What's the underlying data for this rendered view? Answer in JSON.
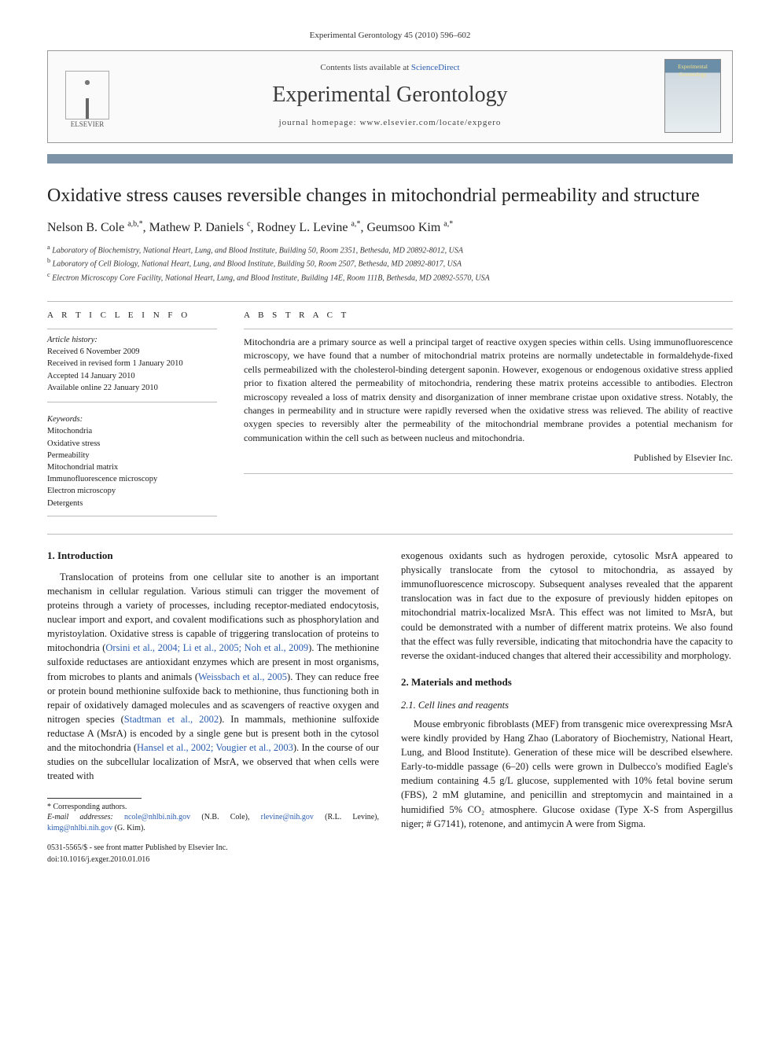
{
  "issue_line": "Experimental Gerontology 45 (2010) 596–602",
  "masthead": {
    "contents_prefix": "Contents lists available at ",
    "contents_link": "ScienceDirect",
    "journal_title": "Experimental Gerontology",
    "homepage_line": "journal homepage: www.elsevier.com/locate/expgero",
    "publisher_name": "ELSEVIER",
    "cover_text": "Experimental\nGerontology"
  },
  "colors": {
    "bar": "#7d93a7",
    "link": "#2a5db0",
    "rule": "#bbbbbb",
    "text": "#1a1a1a",
    "background": "#ffffff"
  },
  "article": {
    "title": "Oxidative stress causes reversible changes in mitochondrial permeability and structure",
    "authors_html": "Nelson B. Cole <sup>a,b,*</sup>, Mathew P. Daniels <sup>c</sup>, Rodney L. Levine <sup>a,*</sup>, Geumsoo Kim <sup>a,*</sup>",
    "affiliations": [
      {
        "key": "a",
        "text": "Laboratory of Biochemistry, National Heart, Lung, and Blood Institute, Building 50, Room 2351, Bethesda, MD 20892-8012, USA"
      },
      {
        "key": "b",
        "text": "Laboratory of Cell Biology, National Heart, Lung, and Blood Institute, Building 50, Room 2507, Bethesda, MD 20892-8017, USA"
      },
      {
        "key": "c",
        "text": "Electron Microscopy Core Facility, National Heart, Lung, and Blood Institute, Building 14E, Room 111B, Bethesda, MD 20892-5570, USA"
      }
    ]
  },
  "info": {
    "heading": "A R T I C L E   I N F O",
    "history_label": "Article history:",
    "history": [
      "Received 6 November 2009",
      "Received in revised form 1 January 2010",
      "Accepted 14 January 2010",
      "Available online 22 January 2010"
    ],
    "keywords_label": "Keywords:",
    "keywords": [
      "Mitochondria",
      "Oxidative stress",
      "Permeability",
      "Mitochondrial matrix",
      "Immunofluorescence microscopy",
      "Electron microscopy",
      "Detergents"
    ]
  },
  "abstract": {
    "heading": "A B S T R A C T",
    "text": "Mitochondria are a primary source as well a principal target of reactive oxygen species within cells. Using immunofluorescence microscopy, we have found that a number of mitochondrial matrix proteins are normally undetectable in formaldehyde-fixed cells permeabilized with the cholesterol-binding detergent saponin. However, exogenous or endogenous oxidative stress applied prior to fixation altered the permeability of mitochondria, rendering these matrix proteins accessible to antibodies. Electron microscopy revealed a loss of matrix density and disorganization of inner membrane cristae upon oxidative stress. Notably, the changes in permeability and in structure were rapidly reversed when the oxidative stress was relieved. The ability of reactive oxygen species to reversibly alter the permeability of the mitochondrial membrane provides a potential mechanism for communication within the cell such as between nucleus and mitochondria.",
    "published_by": "Published by Elsevier Inc."
  },
  "body": {
    "intro_head": "1. Introduction",
    "intro_p1_a": "Translocation of proteins from one cellular site to another is an important mechanism in cellular regulation. Various stimuli can trigger the movement of proteins through a variety of processes, including receptor-mediated endocytosis, nuclear import and export, and covalent modifications such as phosphorylation and myristoylation. Oxidative stress is capable of triggering translocation of proteins to mitochondria (",
    "intro_cite1": "Orsini et al., 2004; Li et al., 2005; Noh et al., 2009",
    "intro_p1_b": "). The methionine sulfoxide reductases are antioxidant enzymes which are present in most organisms, from microbes to plants and animals (",
    "intro_cite2": "Weissbach et al., 2005",
    "intro_p1_c": "). They can reduce free or protein bound methionine sulfoxide back to methionine, thus functioning both in repair of oxidatively damaged molecules and as scavengers of reactive oxygen and nitrogen species (",
    "intro_cite3": "Stadtman et al., 2002",
    "intro_p1_d": "). In mammals, methionine sulfoxide reductase A (MsrA) is encoded by a single gene but is present both in the cytosol and the mitochondria (",
    "intro_cite4": "Hansel et al., 2002; Vougier et al., 2003",
    "intro_p1_e": "). In the course of our studies on the subcellular localization of MsrA, we observed that when cells were treated with",
    "intro_p1_right": "exogenous oxidants such as hydrogen peroxide, cytosolic MsrA appeared to physically translocate from the cytosol to mitochondria, as assayed by immunofluorescence microscopy. Subsequent analyses revealed that the apparent translocation was in fact due to the exposure of previously hidden epitopes on mitochondrial matrix-localized MsrA. This effect was not limited to MsrA, but could be demonstrated with a number of different matrix proteins. We also found that the effect was fully reversible, indicating that mitochondria have the capacity to reverse the oxidant-induced changes that altered their accessibility and morphology.",
    "mm_head": "2. Materials and methods",
    "mm_sub": "2.1. Cell lines and reagents",
    "mm_p1": "Mouse embryonic fibroblasts (MEF) from transgenic mice overexpressing MsrA were kindly provided by Hang Zhao (Laboratory of Biochemistry, National Heart, Lung, and Blood Institute). Generation of these mice will be described elsewhere. Early-to-middle passage (6–20) cells were grown in Dulbecco's modified Eagle's medium containing 4.5 g/L glucose, supplemented with 10% fetal bovine serum (FBS), 2 mM glutamine, and penicillin and streptomycin and maintained in a humidified 5% CO₂ atmosphere. Glucose oxidase (Type X-S from Aspergillus niger; # G7141), rotenone, and antimycin A were from Sigma."
  },
  "footnotes": {
    "corr": "* Corresponding authors.",
    "email_label": "E-mail addresses: ",
    "emails": [
      {
        "addr": "ncole@nhlbi.nih.gov",
        "who": " (N.B. Cole), "
      },
      {
        "addr": "rlevine@nih.gov",
        "who": " (R.L. Levine), "
      },
      {
        "addr": "kimg@nhlbi.nih.gov",
        "who": " (G. Kim)."
      }
    ]
  },
  "doi": {
    "front_matter": "0531-5565/$ - see front matter Published by Elsevier Inc.",
    "doi_line": "doi:10.1016/j.exger.2010.01.016"
  }
}
